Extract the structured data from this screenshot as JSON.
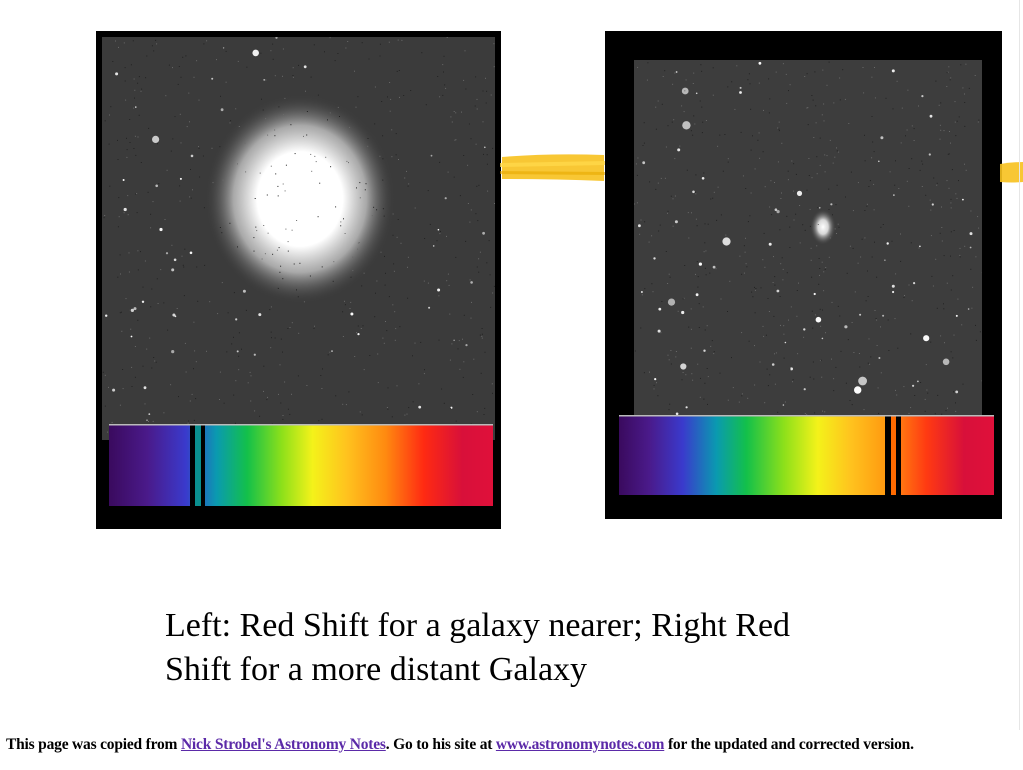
{
  "caption": {
    "line1": "Left: Red Shift for a galaxy nearer; Right Red",
    "line2": "Shift for a more distant Galaxy"
  },
  "footer": {
    "prefix": "This page was copied from ",
    "link1": "Nick Strobel's Astronomy Notes",
    "middle": ". Go to his site at ",
    "link2": "www.astronomynotes.com",
    "suffix": " for the updated and corrected version."
  },
  "colors": {
    "link": "#5b2aa8",
    "absorption_left": "#0a8f8f",
    "absorption_right": "#ff6a00",
    "streak": "#f7c11e"
  },
  "images": {
    "left": "near-galaxy-photo",
    "right": "distant-galaxy-photo"
  }
}
